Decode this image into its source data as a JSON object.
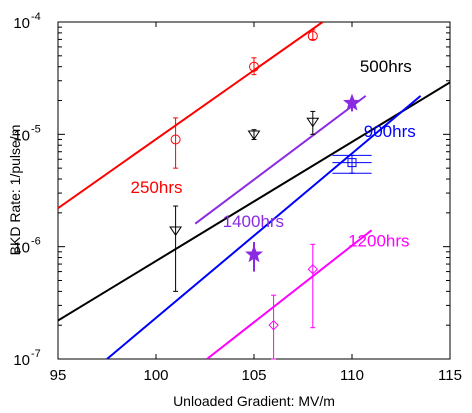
{
  "chart_data": {
    "type": "scatter",
    "title": "",
    "xlabel": "Unloaded Gradient: MV/m",
    "ylabel": "BKD Rate: 1/pulse/m",
    "xlim": [
      95,
      115
    ],
    "ylim": [
      1e-07,
      0.0001
    ],
    "yscale": "log",
    "grid": false,
    "x_ticks": [
      95,
      100,
      105,
      110,
      115
    ],
    "y_ticks": [
      {
        "value": 1e-07,
        "mantissa": "10",
        "exponent": "-7"
      },
      {
        "value": 1e-06,
        "mantissa": "10",
        "exponent": "-6"
      },
      {
        "value": 1e-05,
        "mantissa": "10",
        "exponent": "-5"
      },
      {
        "value": 0.0001,
        "mantissa": "10",
        "exponent": "-4"
      }
    ],
    "series": [
      {
        "name": "250hrs",
        "color": "#ff0000",
        "marker": "circle",
        "label_at": [
          98.7,
          3e-06
        ],
        "fit_line": [
          [
            95,
            2.2e-06
          ],
          [
            108.5,
            0.0001
          ]
        ],
        "points": [
          {
            "x": 101,
            "y": 9e-06,
            "y_low": 5e-06,
            "y_high": 1.4e-05
          },
          {
            "x": 105,
            "y": 4e-05,
            "y_low": 3.4e-05,
            "y_high": 4.8e-05
          },
          {
            "x": 108,
            "y": 7.5e-05,
            "y_low": 7e-05,
            "y_high": 8.5e-05
          }
        ]
      },
      {
        "name": "500hrs",
        "color": "#000000",
        "marker": "triangle-down",
        "label_at": [
          110.4,
          3.6e-05
        ],
        "fit_line": [
          [
            95,
            2.2e-07
          ],
          [
            115,
            2.9e-05
          ]
        ],
        "points": [
          {
            "x": 101,
            "y": 1.4e-06,
            "y_low": 4e-07,
            "y_high": 2.3e-06
          },
          {
            "x": 105,
            "y": 1e-05,
            "y_low": 9e-06,
            "y_high": 1.1e-05
          },
          {
            "x": 108,
            "y": 1.3e-05,
            "y_low": 1e-05,
            "y_high": 1.6e-05
          }
        ]
      },
      {
        "name": "900hrs",
        "color": "#0000ff",
        "marker": "square",
        "label_at": [
          110.6,
          9.5e-06
        ],
        "fit_line": [
          [
            97.5,
            1e-07
          ],
          [
            113.5,
            2.2e-05
          ]
        ],
        "points": [
          {
            "x": 110,
            "y": 5.6e-06,
            "y_low": 4.5e-06,
            "y_high": 6.5e-06,
            "x_low": 109,
            "x_high": 111
          }
        ]
      },
      {
        "name": "1400hrs",
        "color": "#8a2be2",
        "marker": "star",
        "label_at": [
          103.4,
          1.5e-06
        ],
        "fit_line": [
          [
            102,
            1.6e-06
          ],
          [
            110.7,
            2.2e-05
          ]
        ],
        "points": [
          {
            "x": 105,
            "y": 8.5e-07,
            "y_low": 6e-07,
            "y_high": 1.1e-06
          },
          {
            "x": 110,
            "y": 1.9e-05,
            "y_low": 1.6e-05,
            "y_high": 2.2e-05
          }
        ]
      },
      {
        "name": "1200hrs",
        "color": "#ff00ff",
        "marker": "diamond",
        "label_at": [
          109.8,
          1e-06
        ],
        "fit_line": [
          [
            102.6,
            1e-07
          ],
          [
            111,
            1.4e-06
          ]
        ],
        "points": [
          {
            "x": 106,
            "y": 2e-07,
            "y_low": 1e-07,
            "y_high": 3.7e-07
          },
          {
            "x": 108,
            "y": 6.3e-07,
            "y_low": 1.9e-07,
            "y_high": 1.05e-06
          }
        ]
      }
    ]
  }
}
